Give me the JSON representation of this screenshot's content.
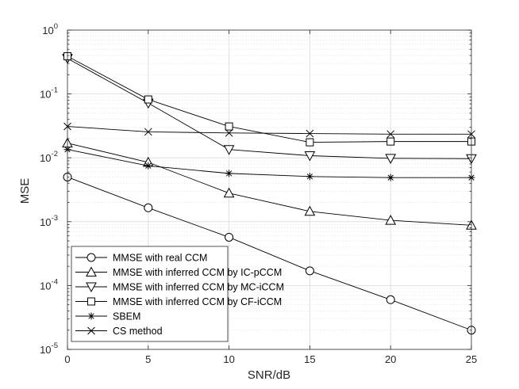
{
  "chart_data": {
    "type": "line",
    "title": "",
    "xlabel": "SNR/dB",
    "ylabel": "MSE",
    "xscale": "linear",
    "yscale": "log",
    "xlim": [
      0,
      25
    ],
    "ylim": [
      1e-05,
      1
    ],
    "grid": true,
    "legend_position": "bottom-left",
    "x": [
      0,
      5,
      10,
      15,
      20,
      25
    ],
    "x_ticks": [
      "0",
      "5",
      "10",
      "15",
      "20",
      "25"
    ],
    "y_ticks": [
      {
        "base": "10",
        "exp": "0"
      },
      {
        "base": "10",
        "exp": "-1"
      },
      {
        "base": "10",
        "exp": "-2"
      },
      {
        "base": "10",
        "exp": "-3"
      },
      {
        "base": "10",
        "exp": "-4"
      },
      {
        "base": "10",
        "exp": "-5"
      }
    ],
    "series": [
      {
        "name": "MMSE with real CCM",
        "marker": "circle",
        "values": [
          0.005,
          0.00165,
          0.00057,
          0.00017,
          6e-05,
          2e-05
        ]
      },
      {
        "name": "MMSE with inferred CCM by IC-pCCM",
        "marker": "triangle-up",
        "values": [
          0.017,
          0.0085,
          0.0028,
          0.00145,
          0.00105,
          0.00088
        ]
      },
      {
        "name": "MMSE with inferred CCM by MC-iCCM",
        "marker": "triangle-down",
        "values": [
          0.36,
          0.072,
          0.0135,
          0.0108,
          0.0098,
          0.0097
        ]
      },
      {
        "name": "MMSE with inferred CCM by CF-iCCM",
        "marker": "square",
        "values": [
          0.39,
          0.082,
          0.031,
          0.0175,
          0.018,
          0.018
        ]
      },
      {
        "name": "SBEM",
        "marker": "asterisk",
        "values": [
          0.0135,
          0.0075,
          0.0057,
          0.0051,
          0.0049,
          0.0049
        ]
      },
      {
        "name": "CS method",
        "marker": "x",
        "values": [
          0.031,
          0.0255,
          0.0245,
          0.024,
          0.0235,
          0.0235
        ]
      }
    ]
  }
}
